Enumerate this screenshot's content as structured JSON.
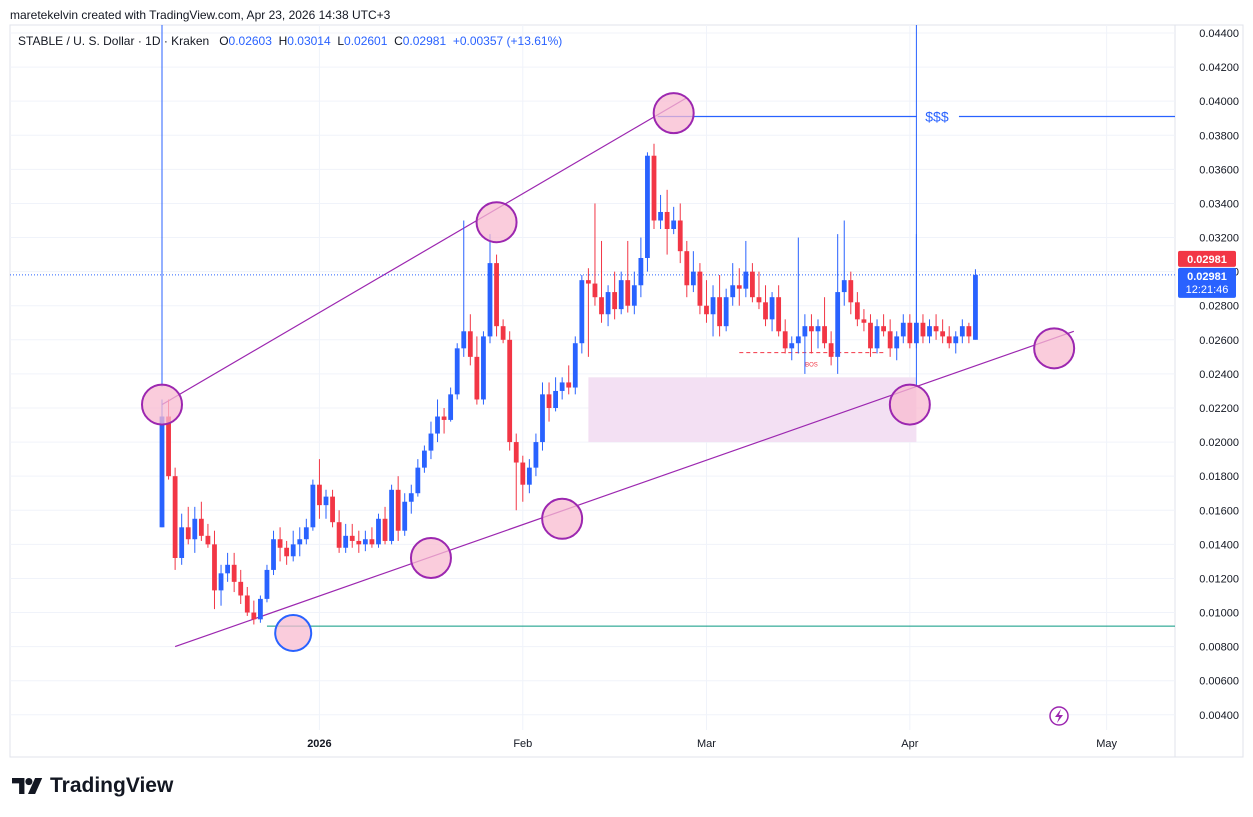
{
  "header": {
    "credit": "maretekelvin created with TradingView.com, Apr 23, 2026 14:38 UTC+3"
  },
  "legend": {
    "symbol": "STABLE / U. S. Dollar · 1D · Kraken",
    "o_label": "O",
    "o_value": "0.02603",
    "h_label": "H",
    "h_value": "0.03014",
    "l_label": "L",
    "l_value": "0.02601",
    "c_label": "C",
    "c_value": "0.02981",
    "change": "+0.00357 (+13.61%)"
  },
  "price_labels": {
    "last": "0.02981",
    "last_color": "#f23645",
    "current": "0.02981",
    "countdown": "12:21:46",
    "current_color": "#2962ff"
  },
  "annotations": {
    "liquidity": "$$$",
    "bos": "BOS"
  },
  "footer": {
    "brand": "TradingView"
  },
  "colors": {
    "up": "#2962ff",
    "down": "#f23645",
    "channel": "#9c27b0",
    "zone": "#f3e0f3",
    "support": "#089981",
    "level": "#2962ff"
  },
  "chart_data": {
    "type": "candlestick",
    "title": "STABLE / U. S. Dollar · 1D · Kraken",
    "y_ticks": [
      0.004,
      0.006,
      0.008,
      0.01,
      0.012,
      0.014,
      0.016,
      0.018,
      0.02,
      0.022,
      0.024,
      0.026,
      0.028,
      0.03,
      0.032,
      0.034,
      0.036,
      0.038,
      0.04,
      0.042,
      0.044
    ],
    "y_tick_labels": [
      "0.00400",
      "0.00600",
      "0.00800",
      "0.01000",
      "0.01200",
      "0.01400",
      "0.01600",
      "0.01800",
      "0.02000",
      "0.02200",
      "0.02400",
      "0.02600",
      "0.02800",
      "0.03000",
      "0.03200",
      "0.03400",
      "0.03600",
      "0.03800",
      "0.04000",
      "0.04200",
      "0.04400"
    ],
    "ylim": [
      0.003,
      0.0445
    ],
    "start_date": "2025-12-08",
    "x_ticks": [
      {
        "date": "2026-01-01",
        "label": "2026"
      },
      {
        "date": "2026-02-01",
        "label": "Feb"
      },
      {
        "date": "2026-03-01",
        "label": "Mar"
      },
      {
        "date": "2026-04-01",
        "label": "Apr"
      },
      {
        "date": "2026-05-01",
        "label": "May"
      }
    ],
    "candles": [
      [
        0.015,
        0.0225,
        0.015,
        0.0215
      ],
      [
        0.0215,
        0.0225,
        0.0178,
        0.018
      ],
      [
        0.018,
        0.0185,
        0.0125,
        0.0132
      ],
      [
        0.0132,
        0.0158,
        0.0128,
        0.015
      ],
      [
        0.015,
        0.0162,
        0.014,
        0.0143
      ],
      [
        0.0143,
        0.0162,
        0.0135,
        0.0155
      ],
      [
        0.0155,
        0.0165,
        0.0142,
        0.0145
      ],
      [
        0.0145,
        0.0152,
        0.0138,
        0.014
      ],
      [
        0.014,
        0.0148,
        0.0102,
        0.0113
      ],
      [
        0.0113,
        0.0128,
        0.0104,
        0.0123
      ],
      [
        0.0123,
        0.0135,
        0.0118,
        0.0128
      ],
      [
        0.0128,
        0.0135,
        0.0112,
        0.0118
      ],
      [
        0.0118,
        0.0125,
        0.0105,
        0.011
      ],
      [
        0.011,
        0.0115,
        0.0098,
        0.01
      ],
      [
        0.01,
        0.0107,
        0.0093,
        0.0096
      ],
      [
        0.0096,
        0.011,
        0.0094,
        0.0108
      ],
      [
        0.0108,
        0.0128,
        0.0106,
        0.0125
      ],
      [
        0.0125,
        0.0148,
        0.0122,
        0.0143
      ],
      [
        0.0143,
        0.015,
        0.013,
        0.0138
      ],
      [
        0.0138,
        0.0142,
        0.0128,
        0.0133
      ],
      [
        0.0133,
        0.0148,
        0.013,
        0.014
      ],
      [
        0.014,
        0.015,
        0.0133,
        0.0143
      ],
      [
        0.0143,
        0.0155,
        0.014,
        0.015
      ],
      [
        0.015,
        0.0178,
        0.0148,
        0.0175
      ],
      [
        0.0175,
        0.019,
        0.0155,
        0.0163
      ],
      [
        0.0163,
        0.0172,
        0.0155,
        0.0168
      ],
      [
        0.0168,
        0.0172,
        0.015,
        0.0153
      ],
      [
        0.0153,
        0.016,
        0.0135,
        0.0138
      ],
      [
        0.0138,
        0.0152,
        0.0135,
        0.0145
      ],
      [
        0.0145,
        0.0152,
        0.0138,
        0.0142
      ],
      [
        0.0142,
        0.0148,
        0.0135,
        0.014
      ],
      [
        0.014,
        0.0148,
        0.0136,
        0.0143
      ],
      [
        0.0143,
        0.015,
        0.0138,
        0.014
      ],
      [
        0.014,
        0.0158,
        0.0138,
        0.0155
      ],
      [
        0.0155,
        0.0162,
        0.014,
        0.0142
      ],
      [
        0.0142,
        0.0175,
        0.014,
        0.0172
      ],
      [
        0.0172,
        0.018,
        0.0142,
        0.0148
      ],
      [
        0.0148,
        0.017,
        0.0145,
        0.0165
      ],
      [
        0.0165,
        0.0175,
        0.0158,
        0.017
      ],
      [
        0.017,
        0.019,
        0.0168,
        0.0185
      ],
      [
        0.0185,
        0.0198,
        0.0182,
        0.0195
      ],
      [
        0.0195,
        0.0212,
        0.019,
        0.0205
      ],
      [
        0.0205,
        0.0225,
        0.02,
        0.0215
      ],
      [
        0.0215,
        0.022,
        0.0205,
        0.0213
      ],
      [
        0.0213,
        0.0232,
        0.0212,
        0.0228
      ],
      [
        0.0228,
        0.0258,
        0.0225,
        0.0255
      ],
      [
        0.0255,
        0.033,
        0.025,
        0.0265
      ],
      [
        0.0265,
        0.0275,
        0.0245,
        0.025
      ],
      [
        0.025,
        0.0262,
        0.0222,
        0.0225
      ],
      [
        0.0225,
        0.0265,
        0.0222,
        0.0262
      ],
      [
        0.0262,
        0.0322,
        0.0258,
        0.0305
      ],
      [
        0.0305,
        0.031,
        0.0262,
        0.0268
      ],
      [
        0.0268,
        0.0272,
        0.0258,
        0.026
      ],
      [
        0.026,
        0.0265,
        0.0195,
        0.02
      ],
      [
        0.02,
        0.0205,
        0.016,
        0.0188
      ],
      [
        0.0188,
        0.0192,
        0.0165,
        0.0175
      ],
      [
        0.0175,
        0.019,
        0.017,
        0.0185
      ],
      [
        0.0185,
        0.0205,
        0.018,
        0.02
      ],
      [
        0.02,
        0.0235,
        0.0195,
        0.0228
      ],
      [
        0.0228,
        0.0235,
        0.0212,
        0.022
      ],
      [
        0.022,
        0.0238,
        0.0218,
        0.023
      ],
      [
        0.023,
        0.0238,
        0.0225,
        0.0235
      ],
      [
        0.0235,
        0.0245,
        0.0228,
        0.0232
      ],
      [
        0.0232,
        0.0262,
        0.0228,
        0.0258
      ],
      [
        0.0258,
        0.0298,
        0.0252,
        0.0295
      ],
      [
        0.0295,
        0.0302,
        0.025,
        0.0293
      ],
      [
        0.0293,
        0.034,
        0.028,
        0.0285
      ],
      [
        0.0285,
        0.0318,
        0.027,
        0.0275
      ],
      [
        0.0275,
        0.0292,
        0.0268,
        0.0288
      ],
      [
        0.0288,
        0.03,
        0.0272,
        0.0278
      ],
      [
        0.0278,
        0.03,
        0.0275,
        0.0295
      ],
      [
        0.0295,
        0.0318,
        0.0276,
        0.028
      ],
      [
        0.028,
        0.03,
        0.0275,
        0.0292
      ],
      [
        0.0292,
        0.032,
        0.0285,
        0.0308
      ],
      [
        0.0308,
        0.037,
        0.03,
        0.0368
      ],
      [
        0.0368,
        0.0375,
        0.0325,
        0.033
      ],
      [
        0.033,
        0.0345,
        0.0325,
        0.0335
      ],
      [
        0.0335,
        0.0348,
        0.031,
        0.0325
      ],
      [
        0.0325,
        0.0338,
        0.0322,
        0.033
      ],
      [
        0.033,
        0.034,
        0.0305,
        0.0312
      ],
      [
        0.0312,
        0.0318,
        0.0285,
        0.0292
      ],
      [
        0.0292,
        0.0312,
        0.0288,
        0.03
      ],
      [
        0.03,
        0.0305,
        0.0275,
        0.028
      ],
      [
        0.028,
        0.0295,
        0.027,
        0.0275
      ],
      [
        0.0275,
        0.0292,
        0.0262,
        0.0285
      ],
      [
        0.0285,
        0.0298,
        0.0262,
        0.0268
      ],
      [
        0.0268,
        0.029,
        0.0265,
        0.0285
      ],
      [
        0.0285,
        0.0305,
        0.028,
        0.0292
      ],
      [
        0.0292,
        0.0302,
        0.028,
        0.029
      ],
      [
        0.029,
        0.0318,
        0.0285,
        0.03
      ],
      [
        0.03,
        0.0305,
        0.0282,
        0.0285
      ],
      [
        0.0285,
        0.03,
        0.0278,
        0.0282
      ],
      [
        0.0282,
        0.0292,
        0.0268,
        0.0272
      ],
      [
        0.0272,
        0.0288,
        0.0265,
        0.0285
      ],
      [
        0.0285,
        0.0292,
        0.0262,
        0.0265
      ],
      [
        0.0265,
        0.0272,
        0.0252,
        0.0255
      ],
      [
        0.0255,
        0.0262,
        0.0248,
        0.0258
      ],
      [
        0.0258,
        0.032,
        0.0252,
        0.0262
      ],
      [
        0.0262,
        0.0275,
        0.024,
        0.0268
      ],
      [
        0.0268,
        0.0275,
        0.0252,
        0.0265
      ],
      [
        0.0265,
        0.0272,
        0.0255,
        0.0268
      ],
      [
        0.0268,
        0.0285,
        0.0255,
        0.0258
      ],
      [
        0.0258,
        0.0265,
        0.0245,
        0.025
      ],
      [
        0.025,
        0.0322,
        0.024,
        0.0288
      ],
      [
        0.0288,
        0.033,
        0.028,
        0.0295
      ],
      [
        0.0295,
        0.03,
        0.0275,
        0.0282
      ],
      [
        0.0282,
        0.0288,
        0.0268,
        0.0272
      ],
      [
        0.0272,
        0.0278,
        0.0265,
        0.027
      ],
      [
        0.027,
        0.0275,
        0.025,
        0.0255
      ],
      [
        0.0255,
        0.0272,
        0.0252,
        0.0268
      ],
      [
        0.0268,
        0.0275,
        0.0262,
        0.0265
      ],
      [
        0.0265,
        0.0272,
        0.025,
        0.0255
      ],
      [
        0.0255,
        0.0265,
        0.0248,
        0.0262
      ],
      [
        0.0262,
        0.0275,
        0.0258,
        0.027
      ],
      [
        0.027,
        0.0275,
        0.0255,
        0.0258
      ],
      [
        0.0258,
        0.0322,
        0.0255,
        0.027
      ],
      [
        0.027,
        0.0275,
        0.0258,
        0.0262
      ],
      [
        0.0262,
        0.0272,
        0.0258,
        0.0268
      ],
      [
        0.0268,
        0.0275,
        0.026,
        0.0265
      ],
      [
        0.0265,
        0.0272,
        0.0258,
        0.0262
      ],
      [
        0.0262,
        0.0268,
        0.0255,
        0.0258
      ],
      [
        0.0258,
        0.0265,
        0.0252,
        0.0262
      ],
      [
        0.0262,
        0.0272,
        0.0258,
        0.0268
      ],
      [
        0.0268,
        0.027,
        0.0258,
        0.0262
      ],
      [
        0.026,
        0.03014,
        0.02601,
        0.02981
      ]
    ],
    "horizontal_levels": [
      {
        "name": "support",
        "value": 0.0092
      },
      {
        "name": "liquidity",
        "value": 0.0391
      }
    ],
    "vertical_markers": [
      {
        "date": "2025-12-08"
      },
      {
        "date": "2026-04-02"
      }
    ],
    "zone": {
      "start": "2026-02-11",
      "end": "2026-04-02",
      "low": 0.02,
      "high": 0.0238
    },
    "bos_level": {
      "start": "2026-03-06",
      "end": "2026-03-28",
      "value": 0.02525
    },
    "channel_lower": [
      {
        "date": "2025-12-10",
        "value": 0.008
      },
      {
        "date": "2026-04-26",
        "value": 0.0265
      }
    ],
    "channel_upper": [
      {
        "date": "2025-12-08",
        "value": 0.0222
      },
      {
        "date": "2026-02-26",
        "value": 0.0402
      }
    ],
    "touch_points": [
      {
        "date": "2025-12-08",
        "value": 0.0222,
        "style": "pink"
      },
      {
        "date": "2025-12-28",
        "value": 0.0088,
        "style": "blue"
      },
      {
        "date": "2026-01-18",
        "value": 0.0132,
        "style": "pink"
      },
      {
        "date": "2026-01-28",
        "value": 0.0329,
        "style": "pink"
      },
      {
        "date": "2026-02-07",
        "value": 0.0155,
        "style": "pink"
      },
      {
        "date": "2026-02-24",
        "value": 0.0393,
        "style": "pink"
      },
      {
        "date": "2026-04-01",
        "value": 0.0222,
        "style": "pink"
      },
      {
        "date": "2026-04-23",
        "value": 0.0255,
        "style": "pink"
      }
    ]
  }
}
